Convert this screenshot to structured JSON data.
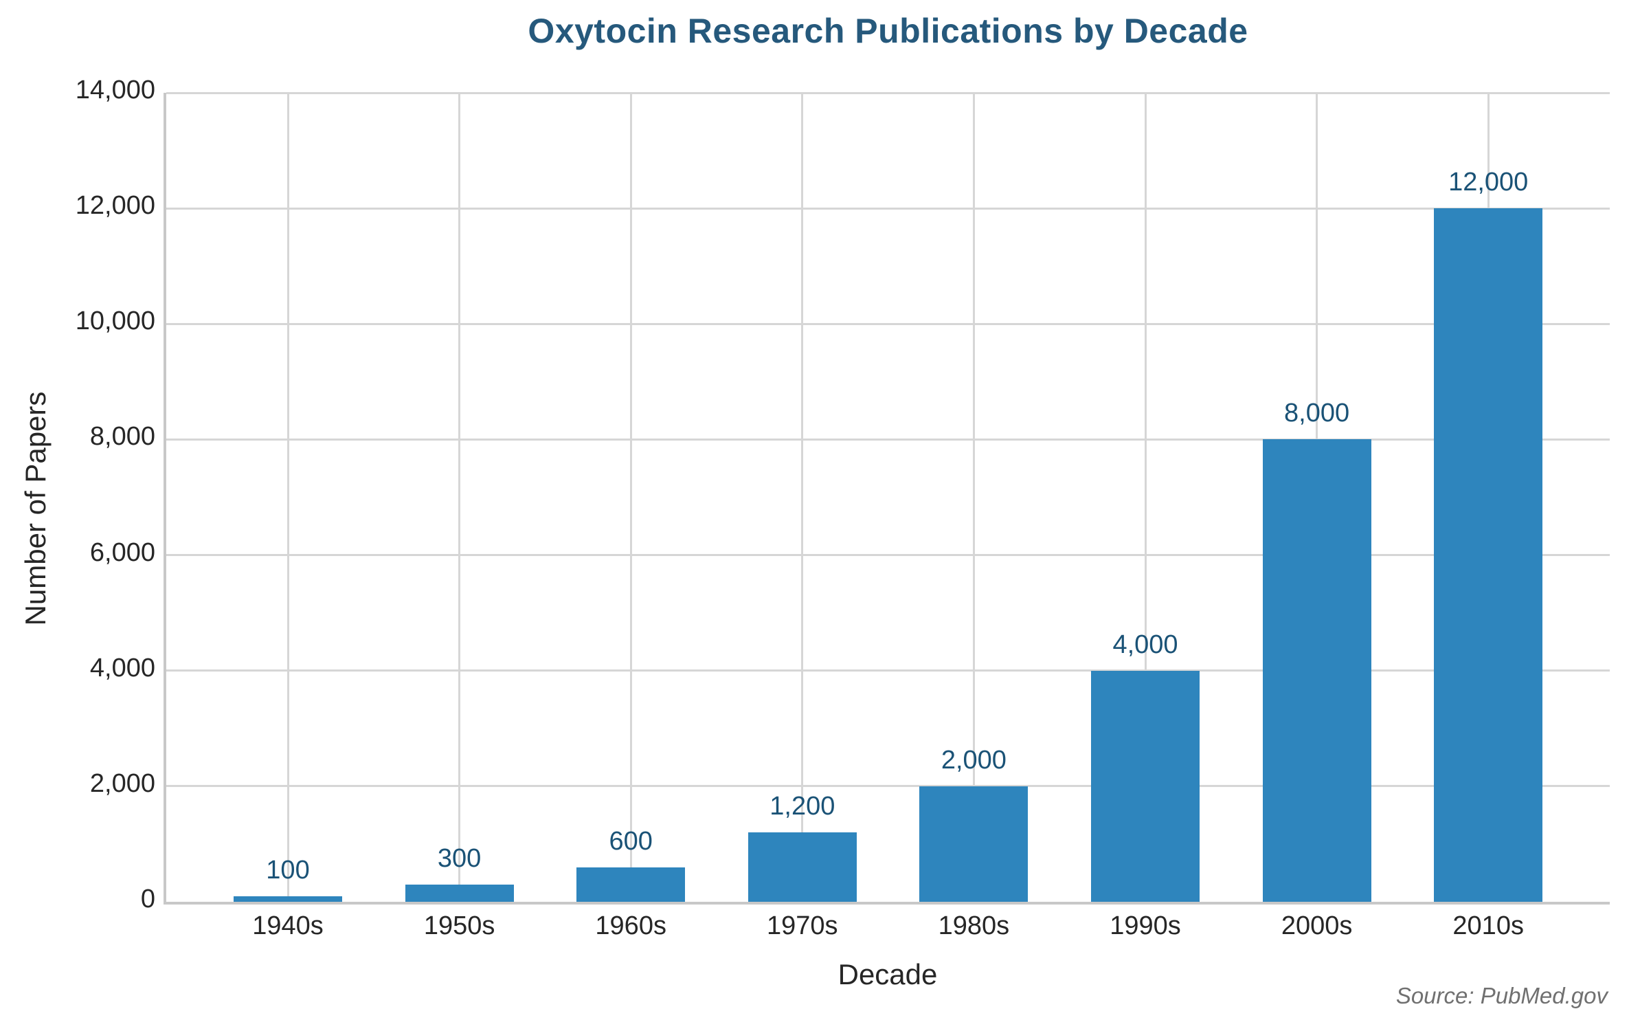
{
  "chart_data": {
    "type": "bar",
    "title": "Oxytocin Research Publications by Decade",
    "xlabel": "Decade",
    "ylabel": "Number of Papers",
    "source": "Source: PubMed.gov",
    "categories": [
      "1940s",
      "1950s",
      "1960s",
      "1970s",
      "1980s",
      "1990s",
      "2000s",
      "2010s"
    ],
    "values": [
      100,
      300,
      600,
      1200,
      2000,
      4000,
      8000,
      12000
    ],
    "value_labels": [
      "100",
      "300",
      "600",
      "1,200",
      "2,000",
      "4,000",
      "8,000",
      "12,000"
    ],
    "ylim": [
      0,
      14000
    ],
    "y_tick_values": [
      0,
      2000,
      4000,
      6000,
      8000,
      10000,
      12000,
      14000
    ],
    "y_tick_labels": [
      "0",
      "2,000",
      "4,000",
      "6,000",
      "8,000",
      "10,000",
      "12,000",
      "14,000"
    ],
    "grid": true,
    "legend": "none",
    "colors": {
      "bar": "#2e85bd",
      "title": "#26597c",
      "value_label": "#1a5276",
      "axis_text": "#262626",
      "gridline": "#d6d6d6",
      "spine": "#c8c8c8",
      "source_text": "#707070",
      "background": "#ffffff"
    }
  }
}
